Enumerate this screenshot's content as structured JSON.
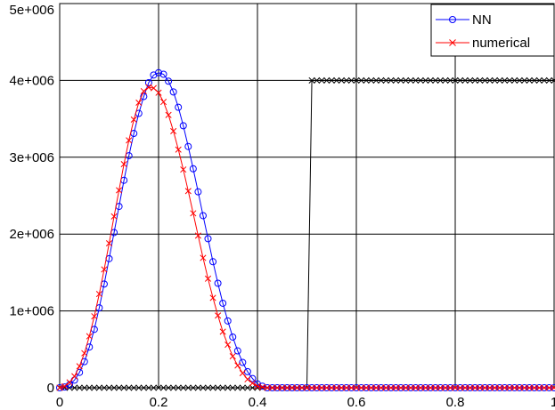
{
  "chart_data": {
    "type": "line",
    "xlim": [
      0,
      1
    ],
    "ylim": [
      0,
      5000000
    ],
    "xticks": [
      0,
      0.2,
      0.4,
      0.6,
      0.8,
      1
    ],
    "xtick_labels": [
      "0",
      "0.2",
      "0.4",
      "0.6",
      "0.8",
      "1"
    ],
    "yticks": [
      0,
      1000000,
      2000000,
      3000000,
      4000000,
      5000000
    ],
    "ytick_labels": [
      "0",
      "1e+006",
      "2e+006",
      "3e+006",
      "4e+006",
      "5e+006"
    ],
    "grid": true,
    "legend_position": "top-right",
    "x": [
      0,
      0.01,
      0.02,
      0.03,
      0.04,
      0.05,
      0.06,
      0.07,
      0.08,
      0.09,
      0.1,
      0.11,
      0.12,
      0.13,
      0.14,
      0.15,
      0.16,
      0.17,
      0.18,
      0.19,
      0.2,
      0.21,
      0.22,
      0.23,
      0.24,
      0.25,
      0.26,
      0.27,
      0.28,
      0.29,
      0.3,
      0.31,
      0.32,
      0.33,
      0.34,
      0.35,
      0.36,
      0.37,
      0.38,
      0.39,
      0.4,
      0.41,
      0.42,
      0.43,
      0.44,
      0.45,
      0.46,
      0.47,
      0.48,
      0.49,
      0.5,
      0.51,
      0.52,
      0.53,
      0.54,
      0.55,
      0.56,
      0.57,
      0.58,
      0.59,
      0.6,
      0.61,
      0.62,
      0.63,
      0.64,
      0.65,
      0.66,
      0.67,
      0.68,
      0.69,
      0.7,
      0.71,
      0.72,
      0.73,
      0.74,
      0.75,
      0.76,
      0.77,
      0.78,
      0.79,
      0.8,
      0.81,
      0.82,
      0.83,
      0.84,
      0.85,
      0.86,
      0.87,
      0.88,
      0.89,
      0.9,
      0.91,
      0.92,
      0.93,
      0.94,
      0.95,
      0.96,
      0.97,
      0.98,
      0.99,
      1
    ],
    "series": [
      {
        "name": "NN",
        "color": "#0000ff",
        "marker": "circle",
        "values": [
          0,
          10000,
          40000,
          100000,
          200000,
          340000,
          530000,
          760000,
          1040000,
          1350000,
          1680000,
          2020000,
          2360000,
          2700000,
          3020000,
          3310000,
          3570000,
          3790000,
          3970000,
          4070000,
          4100000,
          4080000,
          3990000,
          3850000,
          3650000,
          3410000,
          3140000,
          2850000,
          2550000,
          2240000,
          1940000,
          1640000,
          1360000,
          1100000,
          870000,
          660000,
          480000,
          330000,
          210000,
          120000,
          50000,
          20000,
          0,
          0,
          0,
          0,
          0,
          0,
          0,
          0,
          0,
          0,
          0,
          0,
          0,
          0,
          0,
          0,
          0,
          0,
          0,
          0,
          0,
          0,
          0,
          0,
          0,
          0,
          0,
          0,
          0,
          0,
          0,
          0,
          0,
          0,
          0,
          0,
          0,
          0,
          0,
          0,
          0,
          0,
          0,
          0,
          0,
          0,
          0,
          0,
          0,
          0,
          0,
          0,
          0,
          0,
          0,
          0,
          0,
          0,
          0
        ]
      },
      {
        "name": "numerical",
        "color": "#ff0000",
        "marker": "x",
        "values": [
          0,
          20000,
          70000,
          150000,
          280000,
          450000,
          670000,
          930000,
          1220000,
          1540000,
          1880000,
          2230000,
          2570000,
          2910000,
          3220000,
          3490000,
          3710000,
          3860000,
          3910000,
          3900000,
          3840000,
          3720000,
          3550000,
          3340000,
          3100000,
          2840000,
          2560000,
          2270000,
          1980000,
          1690000,
          1420000,
          1170000,
          940000,
          730000,
          560000,
          410000,
          290000,
          190000,
          110000,
          60000,
          20000,
          10000,
          0,
          0,
          0,
          0,
          0,
          0,
          0,
          0,
          0,
          0,
          0,
          0,
          0,
          0,
          0,
          0,
          0,
          0,
          0,
          0,
          0,
          0,
          0,
          0,
          0,
          0,
          0,
          0,
          0,
          0,
          0,
          0,
          0,
          0,
          0,
          0,
          0,
          0,
          0,
          0,
          0,
          0,
          0,
          0,
          0,
          0,
          0,
          0,
          0,
          0,
          0,
          0,
          0,
          0,
          0,
          0,
          0,
          0,
          0
        ]
      },
      {
        "color": "#000000",
        "marker": "x",
        "values": [
          0,
          0,
          0,
          0,
          0,
          0,
          0,
          0,
          0,
          0,
          0,
          0,
          0,
          0,
          0,
          0,
          0,
          0,
          0,
          0,
          0,
          0,
          0,
          0,
          0,
          0,
          0,
          0,
          0,
          0,
          0,
          0,
          0,
          0,
          0,
          0,
          0,
          0,
          0,
          0,
          0,
          0,
          0,
          0,
          0,
          0,
          0,
          0,
          0,
          0,
          0,
          4000000,
          4000000,
          4000000,
          4000000,
          4000000,
          4000000,
          4000000,
          4000000,
          4000000,
          4000000,
          4000000,
          4000000,
          4000000,
          4000000,
          4000000,
          4000000,
          4000000,
          4000000,
          4000000,
          4000000,
          4000000,
          4000000,
          4000000,
          4000000,
          4000000,
          4000000,
          4000000,
          4000000,
          4000000,
          4000000,
          4000000,
          4000000,
          4000000,
          4000000,
          4000000,
          4000000,
          4000000,
          4000000,
          4000000,
          4000000,
          4000000,
          4000000,
          4000000,
          4000000,
          4000000,
          4000000,
          4000000,
          4000000,
          4000000,
          4000000
        ]
      }
    ]
  }
}
